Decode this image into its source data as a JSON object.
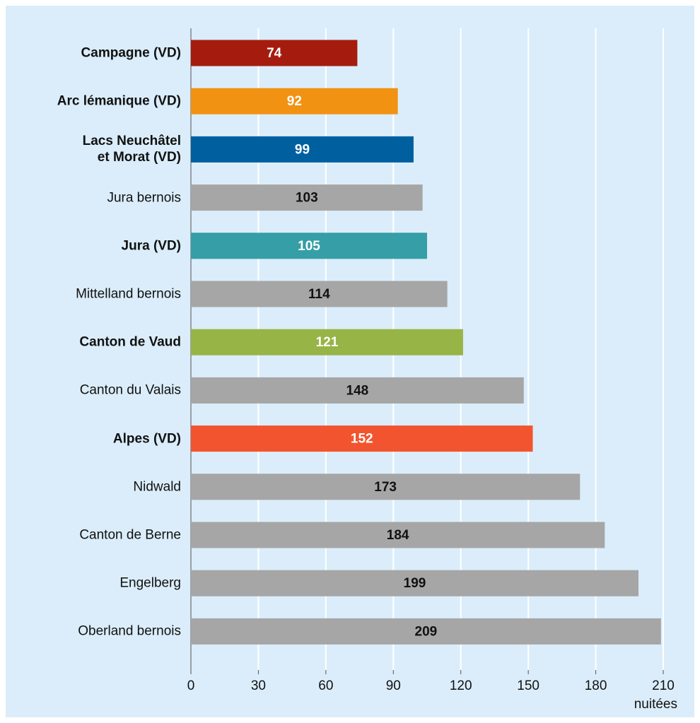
{
  "chart_data": {
    "type": "bar",
    "orientation": "horizontal",
    "categories": [
      "Campagne (VD)",
      "Arc lémanique (VD)",
      "Lacs Neuchâtel\net Morat (VD)",
      "Jura bernois",
      "Jura (VD)",
      "Mittelland bernois",
      "Canton de Vaud",
      "Canton du Valais",
      "Alpes (VD)",
      "Nidwald",
      "Canton de Berne",
      "Engelberg",
      "Oberland bernois"
    ],
    "values": [
      74,
      92,
      99,
      103,
      105,
      114,
      121,
      148,
      152,
      173,
      184,
      199,
      209
    ],
    "color": "#a6a6a6",
    "colors": [
      "#a51c0e",
      "#f29212",
      "#00609f",
      "#a6a6a6",
      "#359ea6",
      "#a6a6a6",
      "#97b446",
      "#a6a6a6",
      "#f2542f",
      "#a6a6a6",
      "#a6a6a6",
      "#a6a6a6",
      "#a6a6a6"
    ],
    "xlabel": "nuitées",
    "xlim": [
      0,
      210
    ],
    "xticks": [
      0,
      30,
      60,
      90,
      120,
      150,
      180,
      210
    ],
    "grid": true
  }
}
